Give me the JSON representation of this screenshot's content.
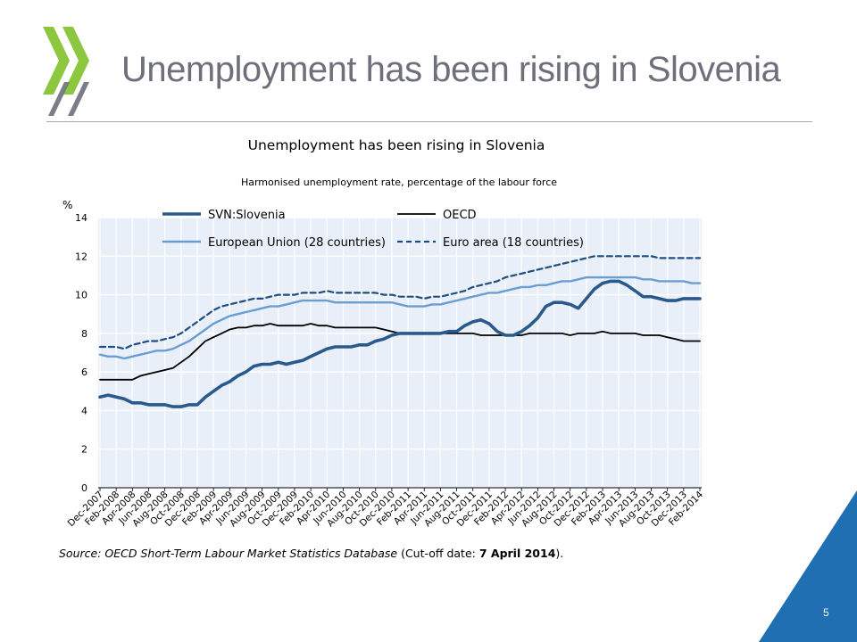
{
  "slide": {
    "title": "Unemployment has been rising in Slovenia",
    "page_number": "5"
  },
  "logo": {
    "icon": "oecd-chevrons-icon",
    "color": "#8dc63f",
    "dark_color": "#6d6f7b"
  },
  "colors": {
    "svn": "#2a5a8c",
    "oecd": "#000000",
    "eu": "#6a9ed2",
    "euro": "#1f4f82",
    "plot_background": "#e8eff8",
    "grid": "#ffffff",
    "corner_triangle": "#1f6fb2"
  },
  "chart_data": {
    "type": "line",
    "title": "Unemployment has been rising in Slovenia",
    "subtitle": "Harmonised unemployment rate, percentage of the labour force",
    "ylabel": "%",
    "ylim": [
      0,
      14
    ],
    "yticks": [
      0,
      2,
      4,
      6,
      8,
      10,
      12,
      14
    ],
    "grid": true,
    "legend": "top, inside plot, two columns",
    "x_tick_labels": [
      "Dec-2007",
      "Feb-2008",
      "Apr-2008",
      "Jun-2008",
      "Aug-2008",
      "Oct-2008",
      "Dec-2008",
      "Feb-2009",
      "Apr-2009",
      "Jun-2009",
      "Aug-2009",
      "Oct-2009",
      "Dec-2009",
      "Feb-2010",
      "Apr-2010",
      "Jun-2010",
      "Aug-2010",
      "Oct-2010",
      "Dec-2010",
      "Feb-2011",
      "Apr-2011",
      "Jun-2011",
      "Aug-2011",
      "Oct-2011",
      "Dec-2011",
      "Feb-2012",
      "Apr-2012",
      "Jun-2012",
      "Aug-2012",
      "Oct-2012",
      "Dec-2012",
      "Feb-2013",
      "Apr-2013",
      "Jun-2013",
      "Aug-2013",
      "Oct-2013",
      "Dec-2013",
      "Feb-2014"
    ],
    "series": [
      {
        "name": "SVN:Slovenia",
        "style": "solid-thick",
        "values": [
          4.7,
          4.8,
          4.7,
          4.6,
          4.4,
          4.4,
          4.3,
          4.3,
          4.3,
          4.2,
          4.2,
          4.3,
          4.3,
          4.7,
          5.0,
          5.3,
          5.5,
          5.8,
          6.0,
          6.3,
          6.4,
          6.4,
          6.5,
          6.4,
          6.5,
          6.6,
          6.8,
          7.0,
          7.2,
          7.3,
          7.3,
          7.3,
          7.4,
          7.4,
          7.6,
          7.7,
          7.9,
          8.0,
          8.0,
          8.0,
          8.0,
          8.0,
          8.0,
          8.1,
          8.1,
          8.4,
          8.6,
          8.7,
          8.5,
          8.1,
          7.9,
          7.9,
          8.1,
          8.4,
          8.8,
          9.4,
          9.6,
          9.6,
          9.5,
          9.3,
          9.8,
          10.3,
          10.6,
          10.7,
          10.7,
          10.5,
          10.2,
          9.9,
          9.9,
          9.8,
          9.7,
          9.7,
          9.8,
          9.8,
          9.8
        ]
      },
      {
        "name": "OECD",
        "style": "solid-thin",
        "values": [
          5.6,
          5.6,
          5.6,
          5.6,
          5.6,
          5.8,
          5.9,
          6.0,
          6.1,
          6.2,
          6.5,
          6.8,
          7.2,
          7.6,
          7.8,
          8.0,
          8.2,
          8.3,
          8.3,
          8.4,
          8.4,
          8.5,
          8.4,
          8.4,
          8.4,
          8.4,
          8.5,
          8.4,
          8.4,
          8.3,
          8.3,
          8.3,
          8.3,
          8.3,
          8.3,
          8.2,
          8.1,
          8.0,
          8.0,
          8.0,
          8.0,
          8.0,
          8.0,
          8.0,
          8.0,
          8.0,
          8.0,
          7.9,
          7.9,
          7.9,
          7.9,
          7.9,
          7.9,
          8.0,
          8.0,
          8.0,
          8.0,
          8.0,
          7.9,
          8.0,
          8.0,
          8.0,
          8.1,
          8.0,
          8.0,
          8.0,
          8.0,
          7.9,
          7.9,
          7.9,
          7.8,
          7.7,
          7.6,
          7.6,
          7.6
        ]
      },
      {
        "name": "European Union (28 countries)",
        "style": "solid-medium",
        "values": [
          6.9,
          6.8,
          6.8,
          6.7,
          6.8,
          6.9,
          7.0,
          7.1,
          7.1,
          7.2,
          7.4,
          7.6,
          7.9,
          8.2,
          8.5,
          8.7,
          8.9,
          9.0,
          9.1,
          9.2,
          9.3,
          9.4,
          9.4,
          9.5,
          9.6,
          9.7,
          9.7,
          9.7,
          9.7,
          9.6,
          9.6,
          9.6,
          9.6,
          9.6,
          9.6,
          9.6,
          9.6,
          9.5,
          9.4,
          9.4,
          9.4,
          9.5,
          9.5,
          9.6,
          9.7,
          9.8,
          9.9,
          10.0,
          10.1,
          10.1,
          10.2,
          10.3,
          10.4,
          10.4,
          10.5,
          10.5,
          10.6,
          10.7,
          10.7,
          10.8,
          10.9,
          10.9,
          10.9,
          10.9,
          10.9,
          10.9,
          10.9,
          10.8,
          10.8,
          10.7,
          10.7,
          10.7,
          10.7,
          10.6,
          10.6
        ]
      },
      {
        "name": "Euro area (18 countries)",
        "style": "dashed",
        "values": [
          7.3,
          7.3,
          7.3,
          7.2,
          7.4,
          7.5,
          7.6,
          7.6,
          7.7,
          7.8,
          8.0,
          8.3,
          8.6,
          8.9,
          9.2,
          9.4,
          9.5,
          9.6,
          9.7,
          9.8,
          9.8,
          9.9,
          10.0,
          10.0,
          10.0,
          10.1,
          10.1,
          10.1,
          10.2,
          10.1,
          10.1,
          10.1,
          10.1,
          10.1,
          10.1,
          10.0,
          10.0,
          9.9,
          9.9,
          9.9,
          9.8,
          9.9,
          9.9,
          10.0,
          10.1,
          10.2,
          10.4,
          10.5,
          10.6,
          10.7,
          10.9,
          11.0,
          11.1,
          11.2,
          11.3,
          11.4,
          11.5,
          11.6,
          11.7,
          11.8,
          11.9,
          12.0,
          12.0,
          12.0,
          12.0,
          12.0,
          12.0,
          12.0,
          12.0,
          11.9,
          11.9,
          11.9,
          11.9,
          11.9,
          11.9
        ]
      }
    ]
  },
  "source": {
    "label": "Source",
    "text": ": OECD Short-Term Labour Market Statistics Database",
    "cutoff_prefix": "(Cut-off date: ",
    "cutoff_date": "7 April 2014",
    "cutoff_suffix": ")."
  }
}
